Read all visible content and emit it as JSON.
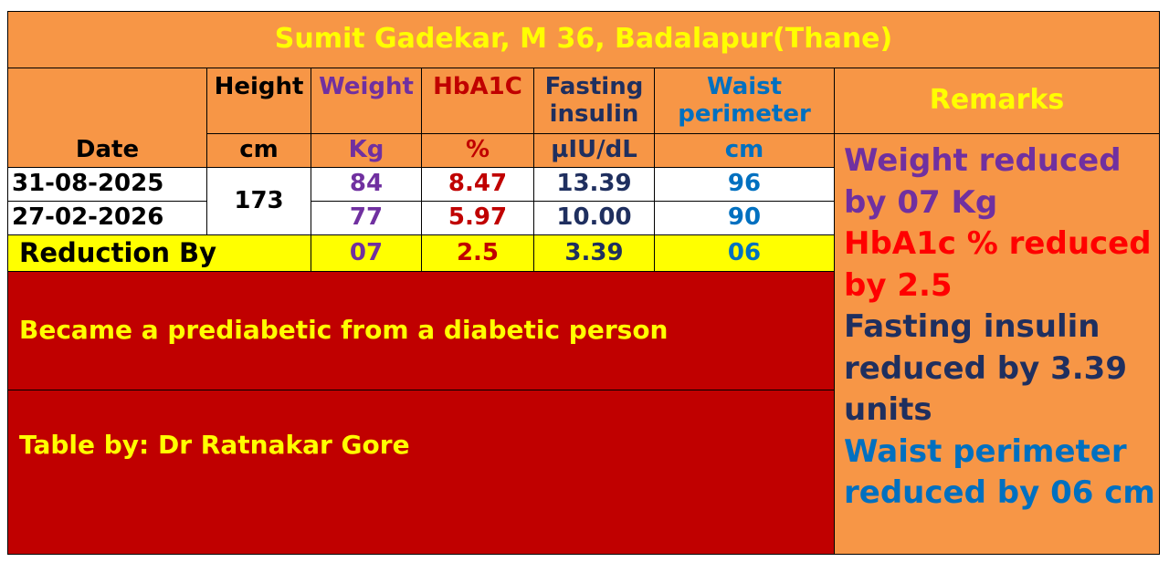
{
  "title": "Sumit Gadekar, M 36, Badalapur(Thane)",
  "headers": {
    "date": "Date",
    "height": "Height",
    "weight": "Weight",
    "hba1c": "HbA1C",
    "insulin": "Fasting insulin",
    "waist": "Waist perimeter",
    "remarks": "Remarks"
  },
  "units": {
    "height": "cm",
    "weight": "Kg",
    "hba1c": "%",
    "insulin": "µIU/dL",
    "waist": "cm"
  },
  "rows": [
    {
      "date": "31-08-2025",
      "weight": "84",
      "hba1c": "8.47",
      "insulin": "13.39",
      "waist": "96"
    },
    {
      "date": "27-02-2026",
      "weight": "77",
      "hba1c": "5.97",
      "insulin": "10.00",
      "waist": "90"
    }
  ],
  "height_value": "173",
  "reduction": {
    "label": "Reduction By",
    "weight": "07",
    "hba1c": "2.5",
    "insulin": "3.39",
    "waist": "06"
  },
  "note": "Became a prediabetic from a diabetic person",
  "credit": "Table by: Dr Ratnakar Gore",
  "remarks": [
    "Weight reduced by 07 Kg",
    "HbA1c % reduced by 2.5",
    "Fasting insulin reduced by 3.39 units",
    "Waist perimeter reduced by 06 cm"
  ],
  "colors": {
    "orange": "#F79646",
    "purple": "#7030A0",
    "red": "#C00000",
    "navy": "#1F2F5F",
    "blue": "#0070C0",
    "yellow": "#FFFF00",
    "bright_red": "#FF0000"
  }
}
